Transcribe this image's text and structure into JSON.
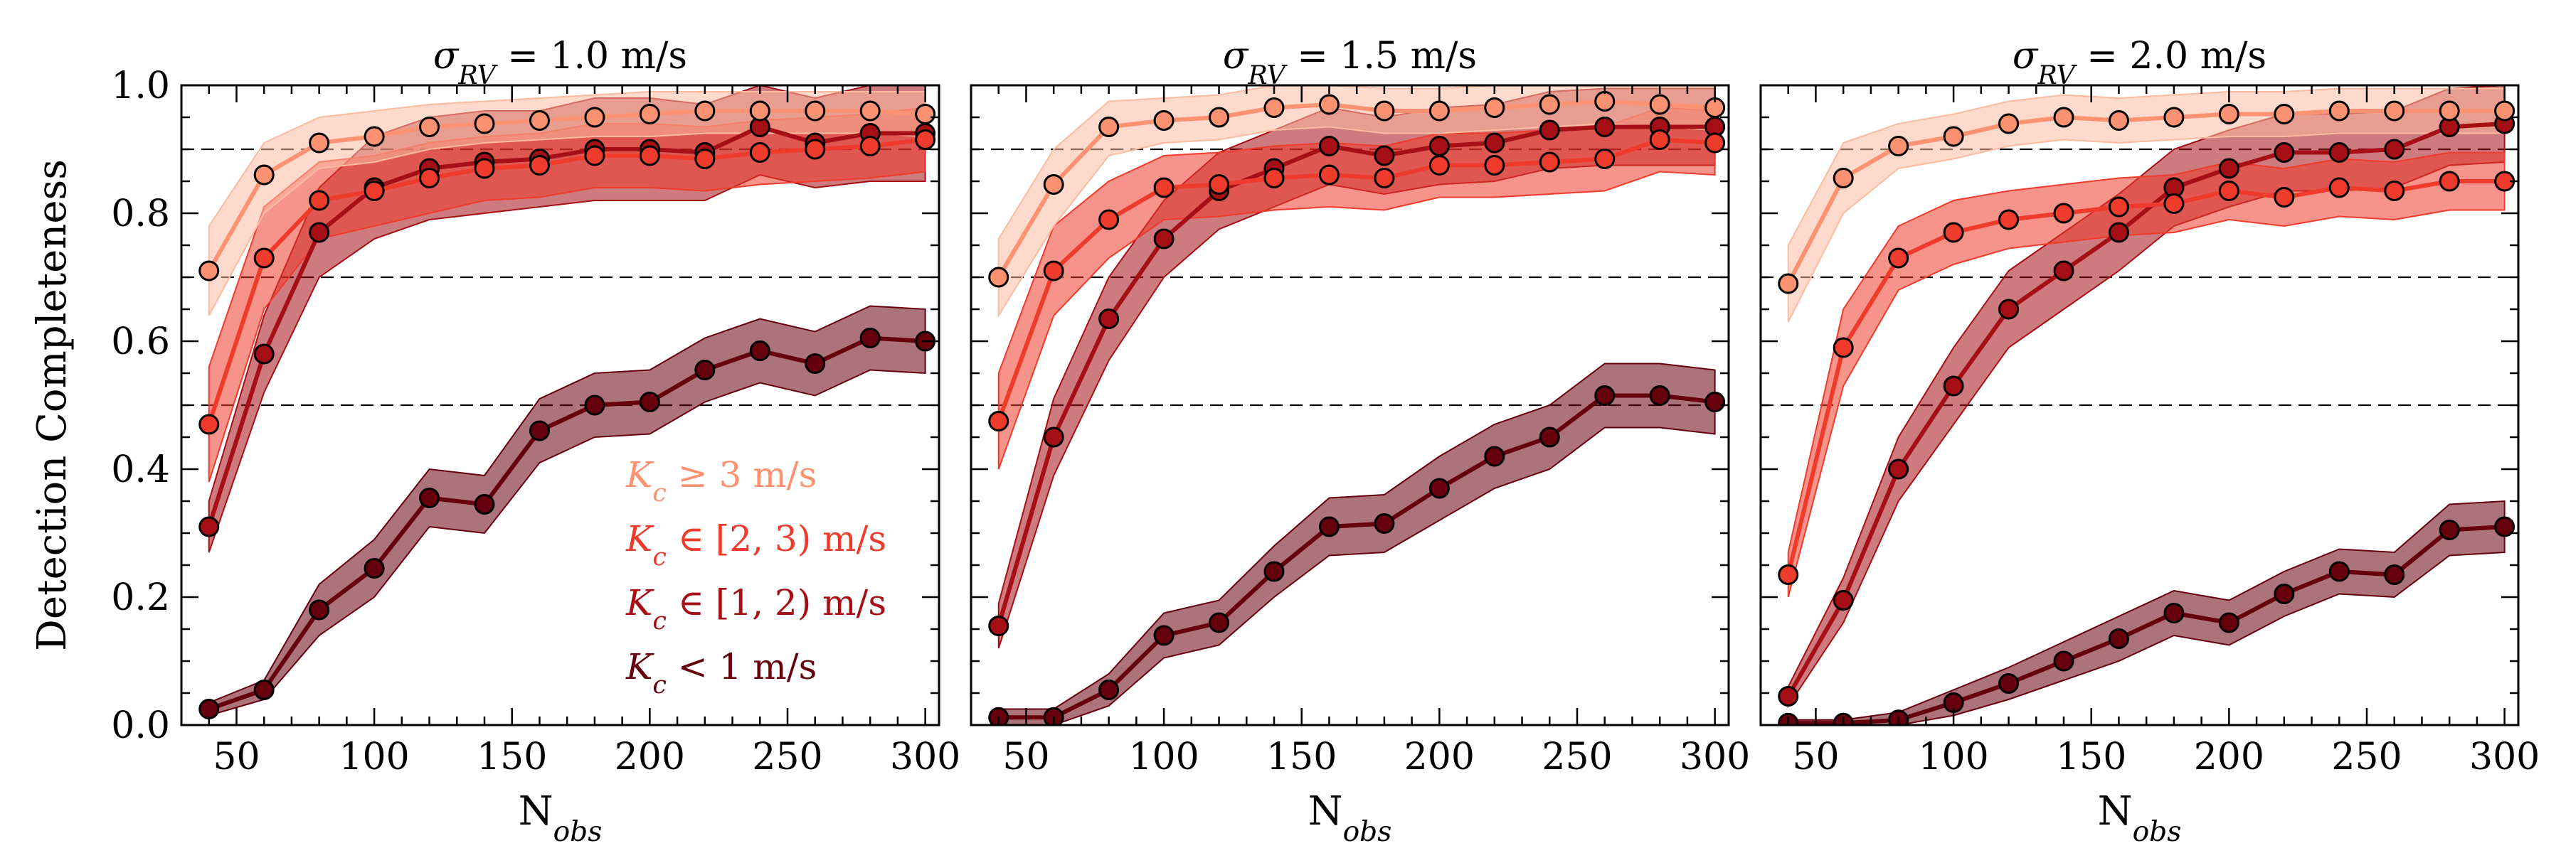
{
  "chart_data": {
    "type": "line",
    "ylabel": "Detection Completeness",
    "xlabel_main": "N",
    "xlabel_sub": "obs",
    "xlim": [
      30,
      305
    ],
    "ylim": [
      0.0,
      1.0
    ],
    "xticks": [
      50,
      100,
      150,
      200,
      250,
      300
    ],
    "xtick_labels": [
      "50",
      "100",
      "150",
      "200",
      "250",
      "300"
    ],
    "yticks": [
      0.0,
      0.2,
      0.4,
      0.6,
      0.8,
      1.0
    ],
    "ytick_labels": [
      "0.0",
      "0.2",
      "0.4",
      "0.6",
      "0.8",
      "1.0"
    ],
    "reference_lines": [
      0.5,
      0.7,
      0.9
    ],
    "legend_position": "lower-right of first panel",
    "x": [
      40,
      60,
      80,
      100,
      120,
      140,
      160,
      180,
      200,
      220,
      240,
      260,
      280,
      300
    ],
    "series_styles": [
      {
        "color": "#fc9272",
        "band_color": "#fcbba1",
        "legend_sym": "K",
        "legend_sub": "c",
        "legend_rel": " ≥ ",
        "legend_val": "3 m/s"
      },
      {
        "color": "#ef3b2c",
        "band_color": "#ef3b2c",
        "legend_sym": "K",
        "legend_sub": "c",
        "legend_rel": " ∈ ",
        "legend_val": "[2, 3) m/s"
      },
      {
        "color": "#a50f15",
        "band_color": "#a50f15",
        "legend_sym": "K",
        "legend_sub": "c",
        "legend_rel": " ∈ ",
        "legend_val": "[1, 2) m/s"
      },
      {
        "color": "#67000d",
        "band_color": "#67000d",
        "legend_sym": "K",
        "legend_sub": "c",
        "legend_rel": " < ",
        "legend_val": "1 m/s"
      }
    ],
    "panels": [
      {
        "title_main": "σ",
        "title_sub": "RV",
        "title_rest": " = 1.0 m/s",
        "series": [
          {
            "values": [
              0.71,
              0.86,
              0.91,
              0.92,
              0.935,
              0.94,
              0.945,
              0.95,
              0.955,
              0.96,
              0.96,
              0.96,
              0.96,
              0.955
            ],
            "lower": [
              0.64,
              0.8,
              0.87,
              0.88,
              0.9,
              0.91,
              0.915,
              0.92,
              0.92,
              0.925,
              0.925,
              0.925,
              0.925,
              0.92
            ],
            "upper": [
              0.78,
              0.91,
              0.95,
              0.96,
              0.97,
              0.975,
              0.98,
              0.985,
              0.99,
              0.99,
              0.99,
              0.99,
              0.99,
              0.99
            ]
          },
          {
            "values": [
              0.47,
              0.73,
              0.82,
              0.835,
              0.855,
              0.87,
              0.875,
              0.89,
              0.89,
              0.885,
              0.895,
              0.9,
              0.905,
              0.915
            ],
            "lower": [
              0.38,
              0.65,
              0.76,
              0.78,
              0.8,
              0.82,
              0.825,
              0.84,
              0.84,
              0.835,
              0.845,
              0.85,
              0.855,
              0.865
            ],
            "upper": [
              0.56,
              0.81,
              0.88,
              0.89,
              0.91,
              0.92,
              0.925,
              0.94,
              0.94,
              0.935,
              0.945,
              0.95,
              0.955,
              0.965
            ]
          },
          {
            "values": [
              0.31,
              0.58,
              0.77,
              0.84,
              0.87,
              0.88,
              0.885,
              0.9,
              0.9,
              0.895,
              0.935,
              0.91,
              0.925,
              0.925
            ],
            "lower": [
              0.27,
              0.52,
              0.7,
              0.76,
              0.79,
              0.8,
              0.81,
              0.82,
              0.82,
              0.82,
              0.86,
              0.84,
              0.85,
              0.85
            ],
            "upper": [
              0.35,
              0.64,
              0.84,
              0.92,
              0.95,
              0.96,
              0.96,
              0.98,
              0.98,
              0.97,
              1.0,
              0.98,
              1.0,
              1.0
            ]
          },
          {
            "values": [
              0.025,
              0.055,
              0.18,
              0.245,
              0.355,
              0.345,
              0.46,
              0.5,
              0.505,
              0.555,
              0.585,
              0.565,
              0.605,
              0.6
            ],
            "lower": [
              0.015,
              0.04,
              0.14,
              0.2,
              0.31,
              0.3,
              0.41,
              0.45,
              0.455,
              0.505,
              0.535,
              0.515,
              0.555,
              0.55
            ],
            "upper": [
              0.035,
              0.07,
              0.22,
              0.29,
              0.4,
              0.39,
              0.51,
              0.55,
              0.555,
              0.605,
              0.635,
              0.615,
              0.655,
              0.65
            ]
          }
        ]
      },
      {
        "title_main": "σ",
        "title_sub": "RV",
        "title_rest": " = 1.5 m/s",
        "series": [
          {
            "values": [
              0.7,
              0.845,
              0.935,
              0.945,
              0.95,
              0.965,
              0.97,
              0.96,
              0.96,
              0.965,
              0.97,
              0.975,
              0.97,
              0.965
            ],
            "lower": [
              0.64,
              0.78,
              0.89,
              0.91,
              0.915,
              0.93,
              0.935,
              0.925,
              0.925,
              0.93,
              0.935,
              0.94,
              0.935,
              0.93
            ],
            "upper": [
              0.76,
              0.9,
              0.975,
              0.98,
              0.985,
              1.0,
              1.0,
              0.995,
              0.995,
              1.0,
              1.0,
              1.0,
              1.0,
              1.0
            ]
          },
          {
            "values": [
              0.475,
              0.71,
              0.79,
              0.84,
              0.845,
              0.855,
              0.86,
              0.855,
              0.875,
              0.875,
              0.88,
              0.885,
              0.915,
              0.91
            ],
            "lower": [
              0.4,
              0.64,
              0.73,
              0.79,
              0.795,
              0.805,
              0.81,
              0.805,
              0.825,
              0.825,
              0.83,
              0.835,
              0.865,
              0.86
            ],
            "upper": [
              0.55,
              0.78,
              0.85,
              0.89,
              0.895,
              0.905,
              0.91,
              0.905,
              0.925,
              0.925,
              0.93,
              0.935,
              0.965,
              0.96
            ]
          },
          {
            "values": [
              0.155,
              0.45,
              0.635,
              0.76,
              0.835,
              0.87,
              0.905,
              0.89,
              0.905,
              0.91,
              0.93,
              0.935,
              0.935,
              0.935
            ],
            "lower": [
              0.12,
              0.39,
              0.57,
              0.7,
              0.775,
              0.81,
              0.845,
              0.83,
              0.845,
              0.85,
              0.87,
              0.875,
              0.875,
              0.875
            ],
            "upper": [
              0.19,
              0.51,
              0.7,
              0.82,
              0.895,
              0.93,
              0.965,
              0.95,
              0.965,
              0.97,
              0.99,
              0.995,
              0.995,
              0.995
            ]
          },
          {
            "values": [
              0.012,
              0.012,
              0.055,
              0.14,
              0.16,
              0.24,
              0.31,
              0.315,
              0.37,
              0.42,
              0.45,
              0.515,
              0.515,
              0.505
            ],
            "lower": [
              0.0,
              0.0,
              0.03,
              0.105,
              0.125,
              0.2,
              0.265,
              0.27,
              0.32,
              0.37,
              0.4,
              0.465,
              0.465,
              0.455
            ],
            "upper": [
              0.025,
              0.025,
              0.08,
              0.175,
              0.195,
              0.28,
              0.355,
              0.36,
              0.42,
              0.47,
              0.5,
              0.565,
              0.565,
              0.555
            ]
          }
        ]
      },
      {
        "title_main": "σ",
        "title_sub": "RV",
        "title_rest": " = 2.0 m/s",
        "series": [
          {
            "values": [
              0.69,
              0.855,
              0.905,
              0.92,
              0.94,
              0.95,
              0.945,
              0.95,
              0.955,
              0.955,
              0.96,
              0.96,
              0.96,
              0.96
            ],
            "lower": [
              0.63,
              0.8,
              0.87,
              0.885,
              0.905,
              0.915,
              0.91,
              0.915,
              0.92,
              0.92,
              0.925,
              0.925,
              0.925,
              0.925
            ],
            "upper": [
              0.75,
              0.91,
              0.94,
              0.955,
              0.975,
              0.985,
              0.98,
              0.985,
              0.99,
              0.99,
              0.995,
              0.995,
              0.995,
              0.995
            ]
          },
          {
            "values": [
              0.235,
              0.59,
              0.73,
              0.77,
              0.79,
              0.8,
              0.81,
              0.815,
              0.835,
              0.825,
              0.84,
              0.835,
              0.85,
              0.85
            ],
            "lower": [
              0.2,
              0.53,
              0.68,
              0.72,
              0.745,
              0.755,
              0.765,
              0.77,
              0.79,
              0.78,
              0.795,
              0.79,
              0.805,
              0.805
            ],
            "upper": [
              0.27,
              0.65,
              0.78,
              0.82,
              0.835,
              0.845,
              0.855,
              0.86,
              0.88,
              0.87,
              0.885,
              0.88,
              0.895,
              0.895
            ]
          },
          {
            "values": [
              0.045,
              0.195,
              0.4,
              0.53,
              0.65,
              0.71,
              0.77,
              0.84,
              0.87,
              0.895,
              0.895,
              0.9,
              0.935,
              0.94
            ],
            "lower": [
              0.03,
              0.16,
              0.35,
              0.47,
              0.59,
              0.65,
              0.71,
              0.78,
              0.81,
              0.835,
              0.835,
              0.84,
              0.875,
              0.88
            ],
            "upper": [
              0.06,
              0.23,
              0.45,
              0.59,
              0.71,
              0.77,
              0.83,
              0.9,
              0.93,
              0.955,
              0.955,
              0.96,
              0.995,
              1.0
            ]
          },
          {
            "values": [
              0.003,
              0.003,
              0.008,
              0.035,
              0.065,
              0.1,
              0.135,
              0.175,
              0.16,
              0.205,
              0.24,
              0.235,
              0.305,
              0.31
            ],
            "lower": [
              0.0,
              0.0,
              0.0,
              0.015,
              0.04,
              0.07,
              0.1,
              0.14,
              0.125,
              0.17,
              0.205,
              0.2,
              0.265,
              0.27
            ],
            "upper": [
              0.008,
              0.008,
              0.02,
              0.055,
              0.09,
              0.13,
              0.17,
              0.21,
              0.195,
              0.24,
              0.275,
              0.27,
              0.345,
              0.35
            ]
          }
        ]
      }
    ]
  }
}
